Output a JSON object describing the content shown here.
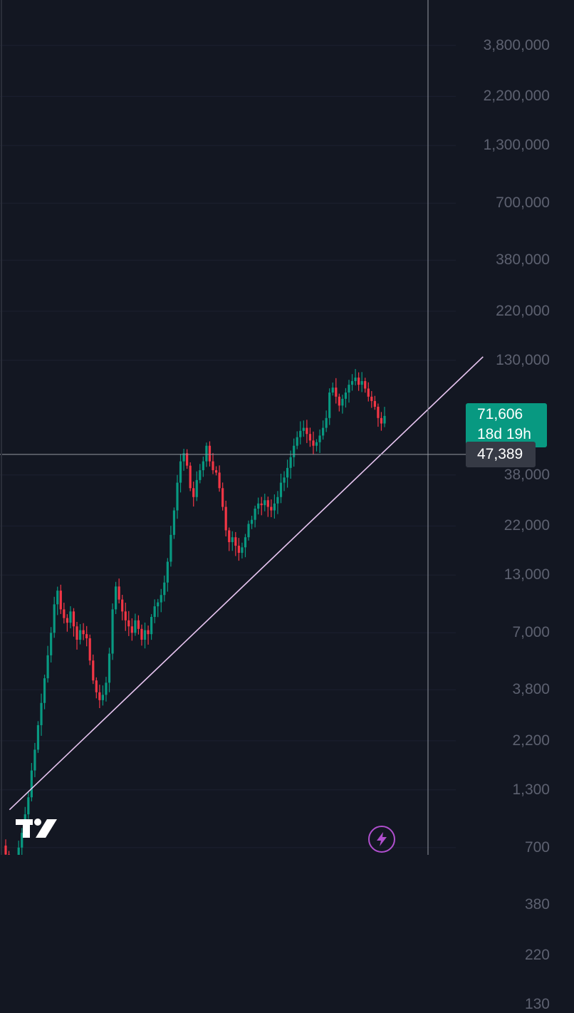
{
  "chart_data": {
    "type": "candlestick",
    "y_scale": "log",
    "ylim": [
      110,
      4000000
    ],
    "y_ticks": [
      {
        "value": 3800000,
        "label": "3,800,000"
      },
      {
        "value": 2200000,
        "label": "2,200,000"
      },
      {
        "value": 1300000,
        "label": "1,300,000"
      },
      {
        "value": 700000,
        "label": "700,000"
      },
      {
        "value": 380000,
        "label": "380,000"
      },
      {
        "value": 220000,
        "label": "220,000"
      },
      {
        "value": 130000,
        "label": "130,000"
      },
      {
        "value": 38000,
        "label": "38,000"
      },
      {
        "value": 22000,
        "label": "22,000"
      },
      {
        "value": 13000,
        "label": "13,000"
      },
      {
        "value": 7000,
        "label": "7,000"
      },
      {
        "value": 3800,
        "label": "3,800"
      },
      {
        "value": 2200,
        "label": "2,200"
      },
      {
        "value": 1300,
        "label": "1,300"
      },
      {
        "value": 700,
        "label": "700"
      },
      {
        "value": 380,
        "label": "380"
      },
      {
        "value": 220,
        "label": "220"
      },
      {
        "value": 130,
        "label": "130"
      }
    ],
    "series_close": [
      650,
      560,
      480,
      600,
      700,
      820,
      1000,
      1200,
      1600,
      2000,
      2600,
      3300,
      4300,
      5500,
      7000,
      9500,
      11000,
      9000,
      8200,
      7800,
      8800,
      7500,
      6500,
      7200,
      6900,
      6600,
      5200,
      4200,
      3700,
      3400,
      3600,
      4100,
      5600,
      9000,
      11500,
      10000,
      8800,
      8000,
      7500,
      7000,
      8000,
      7300,
      6500,
      7200,
      6900,
      8300,
      9300,
      9700,
      10500,
      12000,
      15000,
      20000,
      26000,
      35000,
      44000,
      48000,
      42000,
      33000,
      30000,
      36000,
      40000,
      44000,
      52000,
      44000,
      40000,
      39000,
      33000,
      27000,
      21000,
      18500,
      19500,
      17800,
      16500,
      17500,
      19500,
      22500,
      23500,
      26500,
      28000,
      27500,
      29000,
      27000,
      26000,
      28000,
      30000,
      35000,
      37000,
      41000,
      46000,
      52000,
      57000,
      61000,
      63000,
      59000,
      55000,
      52000,
      54000,
      58000,
      63000,
      70000,
      92000,
      97000,
      88000,
      80000,
      86000,
      92000,
      100000,
      104000,
      108000,
      100000,
      104000,
      96000,
      88000,
      84000,
      79000,
      70000,
      66000,
      71606
    ],
    "trendline": {
      "from": [
        0.01,
        1050
      ],
      "to": [
        1.26,
        135000
      ]
    },
    "crosshair": {
      "price": 47389,
      "price_label": "47,389"
    },
    "last_price": {
      "value": 71606,
      "label": "71,606",
      "countdown": "18d 19h"
    }
  },
  "colors": {
    "background": "#131722",
    "grid": "#1c2030",
    "up": "#089981",
    "down": "#f23645",
    "trendline": "#e9c6f2",
    "crosshair": "#9598a1",
    "axis_text": "#5d6170"
  },
  "icons": {
    "logo": "tradingview-logo-icon",
    "flash": "lightning-bolt-icon"
  }
}
